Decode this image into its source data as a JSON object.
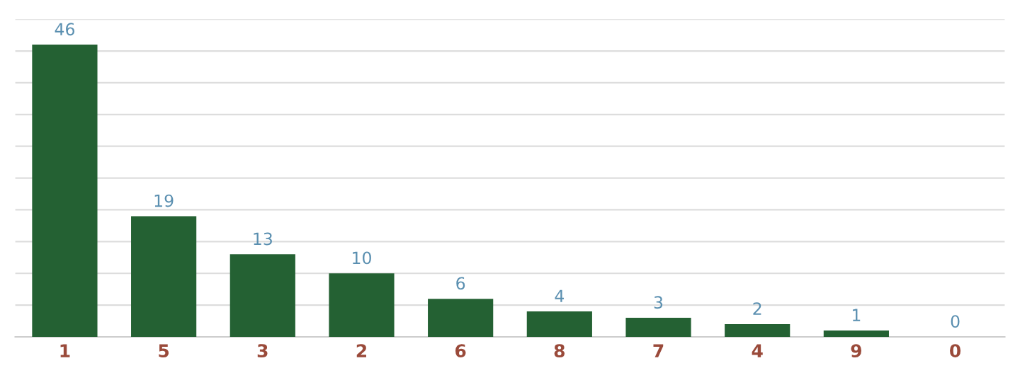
{
  "chart_data": {
    "type": "bar",
    "categories": [
      "1",
      "5",
      "3",
      "2",
      "6",
      "8",
      "7",
      "4",
      "9",
      "0"
    ],
    "values": [
      46,
      19,
      13,
      10,
      6,
      4,
      3,
      2,
      1,
      0
    ],
    "color": "#246133",
    "data_labels": true,
    "ylim": [
      0,
      50
    ],
    "yticks": [
      {
        "value": 0,
        "label": null
      },
      {
        "value": 5,
        "label": null
      },
      {
        "value": 10,
        "label": null
      },
      {
        "value": 15,
        "label": null
      },
      {
        "value": 20,
        "label": null
      },
      {
        "value": 25,
        "label": null
      },
      {
        "value": 30,
        "label": null
      },
      {
        "value": 35,
        "label": null
      },
      {
        "value": 40,
        "label": null
      },
      {
        "value": 45,
        "label": null
      },
      {
        "value": 50,
        "label": null
      }
    ],
    "grid": "y",
    "tick_labels": "x"
  }
}
